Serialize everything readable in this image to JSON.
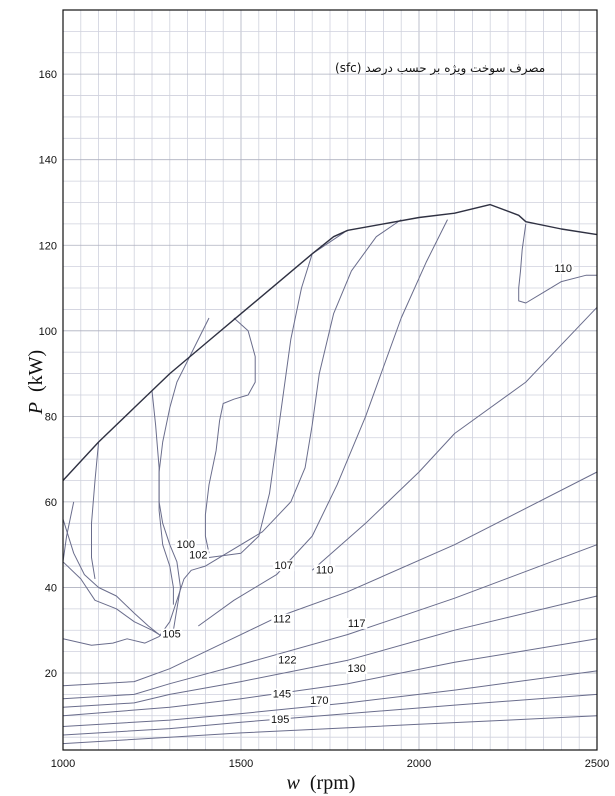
{
  "chart_data": {
    "type": "contour",
    "title": "مصرف سوخت ویژه بر حسب درصد (sfc)",
    "xlabel_var": "w",
    "xlabel_unit": "(rpm)",
    "ylabel_var": "P",
    "ylabel_unit": "(kW)",
    "xlim": [
      1000,
      2500
    ],
    "ylim": [
      2,
      175
    ],
    "x_ticks": [
      1000,
      1500,
      2000,
      2500
    ],
    "y_ticks": [
      20,
      40,
      60,
      80,
      100,
      120,
      140,
      160
    ],
    "grid": true,
    "max_power_curve": [
      [
        1000,
        65
      ],
      [
        1100,
        74
      ],
      [
        1200,
        82
      ],
      [
        1300,
        90
      ],
      [
        1400,
        97
      ],
      [
        1500,
        104
      ],
      [
        1600,
        111
      ],
      [
        1700,
        118
      ],
      [
        1760,
        122
      ],
      [
        1800,
        123.5
      ],
      [
        1900,
        125
      ],
      [
        2000,
        126.5
      ],
      [
        2100,
        127.5
      ],
      [
        2200,
        129.5
      ],
      [
        2280,
        127
      ],
      [
        2300,
        125.5
      ],
      [
        2400,
        123.8
      ],
      [
        2500,
        122.5
      ]
    ],
    "contours": [
      {
        "label": "195",
        "label_at": [
          1610,
          8.5
        ],
        "points": [
          [
            1000,
            3.5
          ],
          [
            1300,
            5
          ],
          [
            1500,
            6
          ],
          [
            1750,
            7
          ],
          [
            2000,
            8
          ],
          [
            2250,
            9
          ],
          [
            2500,
            10
          ]
        ]
      },
      {
        "label": "170",
        "label_at": [
          1720,
          13
        ],
        "points": [
          [
            1000,
            5.5
          ],
          [
            1300,
            7
          ],
          [
            1500,
            8.5
          ],
          [
            1800,
            10.5
          ],
          [
            2100,
            12.5
          ],
          [
            2500,
            15
          ]
        ]
      },
      {
        "label": "145",
        "label_at": [
          1615,
          14.5
        ],
        "points": [
          [
            1000,
            7.5
          ],
          [
            1300,
            9
          ],
          [
            1500,
            10.5
          ],
          [
            1800,
            13
          ],
          [
            2100,
            16
          ],
          [
            2500,
            20.5
          ]
        ]
      },
      {
        "label": "130",
        "label_at": [
          1825,
          20.5
        ],
        "points": [
          [
            1000,
            10
          ],
          [
            1300,
            12
          ],
          [
            1500,
            14
          ],
          [
            1800,
            17.5
          ],
          [
            2100,
            22.5
          ],
          [
            2500,
            28
          ]
        ]
      },
      {
        "label": "122",
        "label_at": [
          1630,
          22.5
        ],
        "points": [
          [
            1000,
            12
          ],
          [
            1200,
            13
          ],
          [
            1300,
            15
          ],
          [
            1500,
            18
          ],
          [
            1800,
            23
          ],
          [
            2100,
            30
          ],
          [
            2500,
            38
          ]
        ]
      },
      {
        "label": "117",
        "label_at": [
          1825,
          31
        ],
        "points": [
          [
            1000,
            14
          ],
          [
            1200,
            15
          ],
          [
            1300,
            17.5
          ],
          [
            1500,
            22
          ],
          [
            1800,
            29
          ],
          [
            2100,
            37.5
          ],
          [
            2500,
            50
          ]
        ]
      },
      {
        "label": "112",
        "label_at": [
          1615,
          32
        ],
        "points": [
          [
            1000,
            17
          ],
          [
            1200,
            18
          ],
          [
            1300,
            21
          ],
          [
            1450,
            27
          ],
          [
            1600,
            33
          ],
          [
            1800,
            39
          ],
          [
            2100,
            50
          ],
          [
            2500,
            67
          ]
        ]
      },
      {
        "label": "110",
        "label_at": [
          1735,
          43.5
        ],
        "points": [
          [
            1700,
            44
          ],
          [
            1850,
            55
          ],
          [
            2000,
            67
          ],
          [
            2100,
            76
          ],
          [
            2300,
            88
          ],
          [
            2500,
            105.5
          ]
        ]
      },
      {
        "label": "107",
        "label_at": [
          1620,
          44.5
        ],
        "points": [
          [
            1380,
            31
          ],
          [
            1480,
            37
          ],
          [
            1600,
            43
          ],
          [
            1700,
            52
          ],
          [
            1770,
            64
          ],
          [
            1850,
            80
          ],
          [
            1950,
            103
          ],
          [
            2020,
            116
          ],
          [
            2080,
            126
          ]
        ]
      },
      {
        "label": "105",
        "label_at": [
          1305,
          28.5
        ],
        "points": [
          [
            1000,
            28
          ],
          [
            1080,
            26.5
          ],
          [
            1140,
            27
          ],
          [
            1180,
            28
          ],
          [
            1230,
            27
          ],
          [
            1270,
            28.5
          ],
          [
            1300,
            32
          ],
          [
            1320,
            37
          ],
          [
            1340,
            42
          ],
          [
            1360,
            44
          ],
          [
            1380,
            44.5
          ],
          [
            1400,
            45
          ],
          [
            1460,
            48
          ],
          [
            1560,
            53
          ],
          [
            1640,
            60
          ],
          [
            1680,
            68
          ],
          [
            1700,
            78
          ],
          [
            1720,
            90
          ],
          [
            1760,
            104
          ],
          [
            1810,
            114
          ],
          [
            1880,
            122
          ],
          [
            1950,
            126
          ]
        ]
      },
      {
        "label": "102",
        "label_at": [
          1380,
          47
        ],
        "points": [
          [
            1410,
            47
          ],
          [
            1500,
            48
          ],
          [
            1550,
            52
          ],
          [
            1580,
            62
          ],
          [
            1610,
            80
          ],
          [
            1640,
            98
          ],
          [
            1670,
            110
          ],
          [
            1700,
            118
          ],
          [
            1790,
            123
          ]
        ]
      },
      {
        "label": "100",
        "label_at": [
          1345,
          49.5
        ],
        "points": [
          [
            1030,
            60
          ],
          [
            1010,
            52
          ],
          [
            1000,
            46
          ],
          [
            1050,
            42
          ],
          [
            1090,
            37
          ],
          [
            1150,
            35
          ],
          [
            1200,
            32
          ],
          [
            1250,
            30
          ],
          [
            1290,
            28
          ],
          [
            1310,
            30
          ],
          [
            1320,
            35
          ],
          [
            1330,
            40
          ],
          [
            1320,
            46
          ],
          [
            1300,
            50
          ],
          [
            1280,
            55
          ],
          [
            1270,
            60
          ],
          [
            1270,
            67
          ],
          [
            1280,
            74
          ],
          [
            1300,
            82
          ],
          [
            1320,
            88
          ],
          [
            1350,
            93
          ],
          [
            1380,
            98
          ],
          [
            1410,
            103
          ]
        ]
      },
      {
        "label": "",
        "label_at": null,
        "points": [
          [
            1000,
            56
          ],
          [
            1030,
            48
          ],
          [
            1060,
            43
          ],
          [
            1100,
            40
          ],
          [
            1150,
            38
          ],
          [
            1200,
            34
          ],
          [
            1240,
            31
          ],
          [
            1270,
            29
          ]
        ]
      },
      {
        "label": "",
        "label_at": null,
        "points": [
          [
            1100,
            74
          ],
          [
            1090,
            65
          ],
          [
            1080,
            55
          ],
          [
            1080,
            47
          ],
          [
            1090,
            42
          ]
        ]
      },
      {
        "label": "",
        "label_at": null,
        "points": [
          [
            1250,
            86
          ],
          [
            1260,
            78
          ],
          [
            1270,
            68
          ],
          [
            1270,
            58
          ],
          [
            1280,
            50
          ],
          [
            1300,
            45
          ],
          [
            1310,
            40
          ],
          [
            1310,
            36
          ]
        ]
      },
      {
        "label": "",
        "label_at": null,
        "points": [
          [
            1480,
            103
          ],
          [
            1520,
            100
          ],
          [
            1540,
            94
          ],
          [
            1540,
            88
          ],
          [
            1520,
            85
          ],
          [
            1480,
            84
          ],
          [
            1450,
            83
          ],
          [
            1440,
            79
          ],
          [
            1430,
            72
          ],
          [
            1410,
            64
          ],
          [
            1400,
            57
          ],
          [
            1400,
            52
          ],
          [
            1410,
            48
          ]
        ]
      },
      {
        "label": "110",
        "label_at": [
          2405,
          114
        ],
        "points": [
          [
            2300,
            125
          ],
          [
            2290,
            119
          ],
          [
            2285,
            114
          ],
          [
            2280,
            110
          ],
          [
            2280,
            107
          ],
          [
            2300,
            106.5
          ],
          [
            2350,
            109
          ],
          [
            2400,
            111.5
          ],
          [
            2470,
            113
          ],
          [
            2500,
            113
          ]
        ]
      }
    ]
  }
}
